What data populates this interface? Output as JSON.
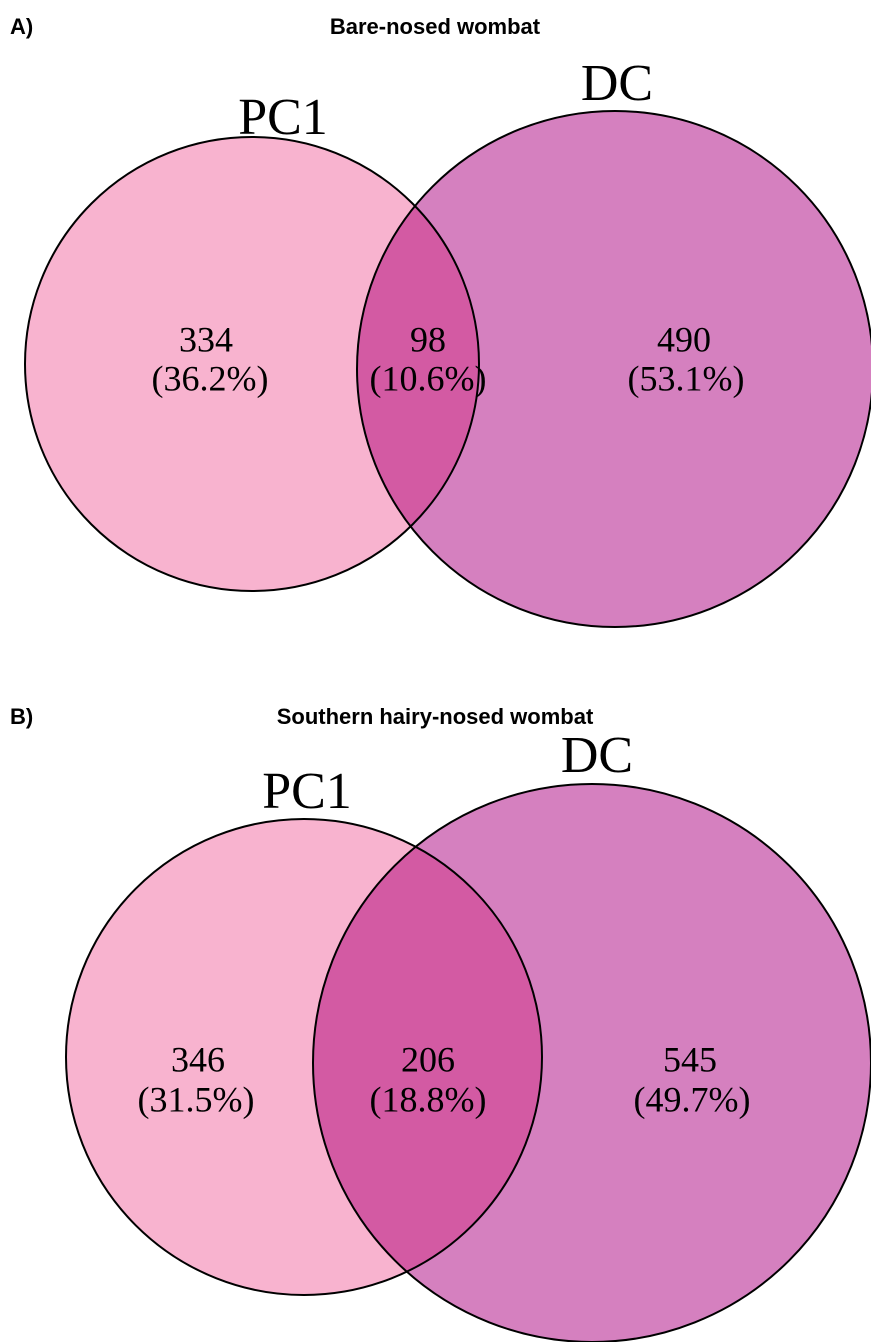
{
  "chart_data": [
    {
      "type": "venn",
      "panel": "A)",
      "title": "Bare-nosed wombat",
      "sets": [
        {
          "name": "PC1",
          "color": "#f8b3cf"
        },
        {
          "name": "DC",
          "color": "#d580bf"
        }
      ],
      "overlap_color": "#d35aa3",
      "regions": [
        "PC1",
        "PC1 & DC",
        "DC"
      ],
      "values": [
        334,
        98,
        490
      ],
      "percent_labels": [
        "(36.2%)",
        "(10.6%)",
        "(53.1%)"
      ]
    },
    {
      "type": "venn",
      "panel": "B)",
      "title": "Southern hairy-nosed wombat",
      "sets": [
        {
          "name": "PC1",
          "color": "#f8b3cf"
        },
        {
          "name": "DC",
          "color": "#d580bf"
        }
      ],
      "overlap_color": "#d35aa3",
      "regions": [
        "PC1",
        "PC1 & DC",
        "DC"
      ],
      "values": [
        346,
        206,
        545
      ],
      "percent_labels": [
        "(31.5%)",
        "(18.8%)",
        "(49.7%)"
      ]
    }
  ]
}
